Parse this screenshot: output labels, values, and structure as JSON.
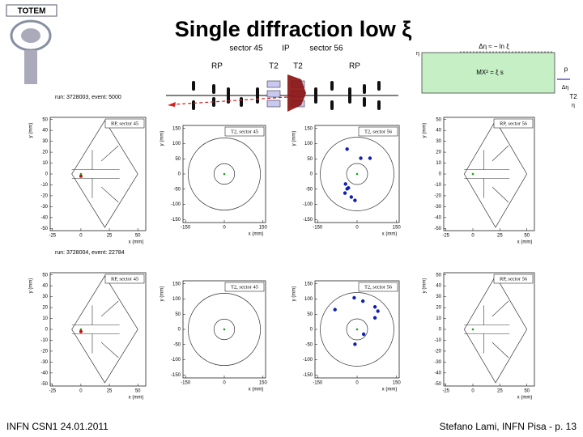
{
  "title": "Single diffraction low ξ",
  "logo": "TOTEM",
  "header": {
    "sector_left": "sector 45",
    "ip": "IP",
    "sector_right": "sector 56",
    "rp_left": "RP",
    "t2_left": "T2",
    "t2_right": "T2",
    "rp_right": "RP"
  },
  "inset": {
    "top_formula": "Δη ≈ − ln ξ",
    "mass_formula": "MX² = ξ s",
    "proton": "p",
    "gap": "Δη",
    "eta": "η",
    "t2": "T2"
  },
  "runs": [
    "run: 3728003, event: 5000",
    "run: 3728004, event: 22784"
  ],
  "rows": [
    {
      "panels": [
        {
          "kind": "rp",
          "title": "RP, sector 45",
          "xlabel": "x (mm)",
          "ylabel": "y (mm)",
          "xlim": [
            -27,
            57
          ],
          "ylim": [
            -52,
            52
          ],
          "xticks": [
            -25,
            0,
            25,
            50
          ],
          "yticks": [
            50,
            40,
            30,
            20,
            10,
            0,
            -10,
            -20,
            -30,
            -40,
            -50
          ],
          "hits": [
            {
              "x": 0,
              "y": -2
            }
          ]
        },
        {
          "kind": "t2",
          "title": "T2, sector 45",
          "xlabel": "x (mm)",
          "ylabel": "y (mm)",
          "xlim": [
            -160,
            160
          ],
          "ylim": [
            -160,
            160
          ],
          "xticks": [
            -150,
            0,
            150
          ],
          "yticks": [
            150,
            100,
            50,
            0,
            -50,
            -100,
            -150
          ],
          "hits": []
        },
        {
          "kind": "t2",
          "title": "T2, sector 56",
          "xlabel": "x (mm)",
          "ylabel": "y (mm)",
          "xlim": [
            -160,
            160
          ],
          "ylim": [
            -160,
            160
          ],
          "xticks": [
            -150,
            0,
            150
          ],
          "yticks": [
            150,
            100,
            50,
            0,
            -50,
            -100,
            -150
          ],
          "hits": [
            {
              "x": -38,
              "y": 82
            },
            {
              "x": 14,
              "y": 52
            },
            {
              "x": 49,
              "y": 52
            },
            {
              "x": -44,
              "y": -33
            },
            {
              "x": -33,
              "y": -46
            },
            {
              "x": -46,
              "y": -63
            },
            {
              "x": -22,
              "y": -76
            },
            {
              "x": -8,
              "y": -87
            },
            {
              "x": -38,
              "y": -49
            }
          ]
        },
        {
          "kind": "rp",
          "title": "RP, sector 56",
          "xlabel": "x (mm)",
          "ylabel": "y (mm)",
          "xlim": [
            -27,
            57
          ],
          "ylim": [
            -52,
            52
          ],
          "xticks": [
            -25,
            0,
            25,
            50
          ],
          "yticks": [
            50,
            40,
            30,
            20,
            10,
            0,
            -10,
            -20,
            -30,
            -40,
            -50
          ],
          "hits": []
        }
      ]
    },
    {
      "panels": [
        {
          "kind": "rp",
          "title": "RP, sector 45",
          "xlabel": "x (mm)",
          "ylabel": "y (mm)",
          "xlim": [
            -27,
            57
          ],
          "ylim": [
            -52,
            52
          ],
          "xticks": [
            -25,
            0,
            25,
            50
          ],
          "yticks": [
            50,
            40,
            30,
            20,
            10,
            0,
            -10,
            -20,
            -30,
            -40,
            -50
          ],
          "hits": [
            {
              "x": 0,
              "y": -2
            }
          ]
        },
        {
          "kind": "t2",
          "title": "T2, sector 45",
          "xlabel": "x (mm)",
          "ylabel": "y (mm)",
          "xlim": [
            -160,
            160
          ],
          "ylim": [
            -160,
            160
          ],
          "xticks": [
            -150,
            0,
            150
          ],
          "yticks": [
            150,
            100,
            50,
            0,
            -50,
            -100,
            -150
          ],
          "hits": []
        },
        {
          "kind": "t2",
          "title": "T2, sector 56",
          "xlabel": "x (mm)",
          "ylabel": "y (mm)",
          "xlim": [
            -160,
            160
          ],
          "ylim": [
            -160,
            160
          ],
          "xticks": [
            -150,
            0,
            150
          ],
          "yticks": [
            150,
            100,
            50,
            0,
            -50,
            -100,
            -150
          ],
          "hits": [
            {
              "x": -84,
              "y": 65
            },
            {
              "x": -11,
              "y": 104
            },
            {
              "x": 22,
              "y": 93
            },
            {
              "x": 68,
              "y": 74
            },
            {
              "x": 79,
              "y": 60
            },
            {
              "x": 68,
              "y": 38
            },
            {
              "x": 25,
              "y": -16
            },
            {
              "x": -8,
              "y": -49
            }
          ]
        },
        {
          "kind": "rp",
          "title": "RP, sector 56",
          "xlabel": "x (mm)",
          "ylabel": "y (mm)",
          "xlim": [
            -27,
            57
          ],
          "ylim": [
            -52,
            52
          ],
          "xticks": [
            -25,
            0,
            25,
            50
          ],
          "yticks": [
            50,
            40,
            30,
            20,
            10,
            0,
            -10,
            -20,
            -30,
            -40,
            -50
          ],
          "hits": []
        }
      ]
    }
  ],
  "footer": {
    "left": "INFN CSN1 24.01.2011",
    "right": "Stefano Lami, INFN Pisa - p. 13"
  }
}
